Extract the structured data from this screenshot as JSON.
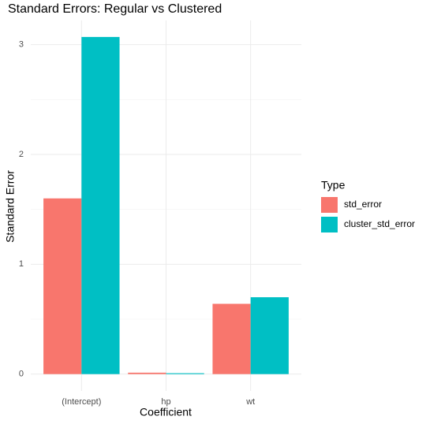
{
  "chart_data": {
    "type": "bar",
    "title": "Standard Errors: Regular vs Clustered",
    "x_label": "Coefficient",
    "y_label": "Standard Error",
    "categories": [
      "(Intercept)",
      "hp",
      "wt"
    ],
    "series": [
      {
        "name": "std_error",
        "color": "#f8766d",
        "values": [
          1.6,
          0.013,
          0.64
        ]
      },
      {
        "name": "cluster_std_error",
        "color": "#00bfc4",
        "values": [
          3.07,
          0.008,
          0.7
        ]
      }
    ],
    "ylim": [
      -0.153,
      3.22
    ],
    "yticks": [
      0,
      1,
      2,
      3
    ],
    "minor_yticks": [
      0.5,
      1.5,
      2.5
    ],
    "grid": true,
    "legend_title": "Type",
    "legend_position": "right"
  }
}
